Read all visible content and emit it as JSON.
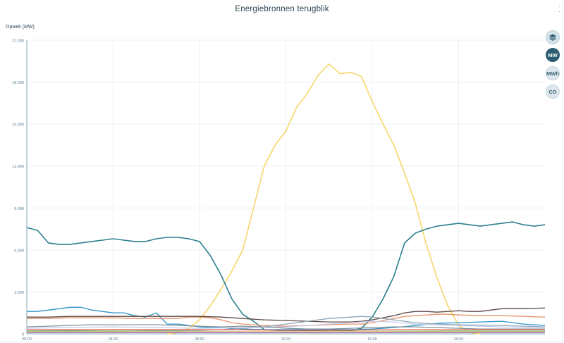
{
  "title": "Energiebronnen terugblik",
  "controls": {
    "layers_icon": "layers-icon",
    "mw_label": "MW",
    "mwh_label": "MWh",
    "co_label": "CO"
  },
  "colors": {
    "axis": "#7ea5b8",
    "tick_text": "#5a7f92",
    "grid": "#edf1f3"
  },
  "chart_data": {
    "type": "line",
    "ylabel": "Opwek (MW)",
    "ylim": [
      0,
      21000
    ],
    "xlim": [
      0,
      24
    ],
    "yticks": [
      0,
      3000,
      6000,
      9000,
      12000,
      15000,
      18000,
      21000
    ],
    "ytick_labels": [
      "0",
      "3.000",
      "6.000",
      "9.000",
      "12.000",
      "15.000",
      "18.000",
      "21.000"
    ],
    "xticks": [
      0,
      4,
      8,
      12,
      16,
      20
    ],
    "xtick_labels": [
      "00:00",
      "04:00",
      "08:00",
      "12:00",
      "16:00",
      "20:00"
    ],
    "grid": true,
    "series": [
      {
        "color": "#f7d66b",
        "x": [
          6.5,
          7,
          7.5,
          8,
          8.5,
          9,
          9.5,
          10,
          10.5,
          11,
          11.5,
          12,
          12.5,
          13,
          13.5,
          14,
          14.5,
          15,
          15.5,
          16,
          16.5,
          17,
          17.5,
          18,
          18.5,
          19,
          19.5,
          20,
          20.5,
          21
        ],
        "y": [
          0,
          100,
          400,
          1000,
          2000,
          3200,
          4500,
          6000,
          9000,
          12000,
          13500,
          14500,
          16200,
          17200,
          18500,
          19300,
          18600,
          18700,
          18400,
          16600,
          15000,
          13500,
          11500,
          9300,
          6400,
          4000,
          2000,
          600,
          100,
          0
        ]
      },
      {
        "color": "#2b7f8e",
        "x": [
          0,
          0.5,
          1,
          1.5,
          2,
          2.5,
          3,
          3.5,
          4,
          4.5,
          5,
          5.5,
          6,
          6.5,
          7,
          7.5,
          8,
          8.5,
          9,
          9.5,
          10,
          10.5,
          11,
          11.5,
          12,
          13,
          14,
          15,
          15.5,
          16,
          16.5,
          17,
          17.5,
          18,
          18.5,
          19,
          19.5,
          20,
          20.5,
          21,
          21.5,
          22,
          22.5,
          23,
          23.5,
          24
        ],
        "y": [
          7600,
          7400,
          6500,
          6400,
          6400,
          6500,
          6600,
          6700,
          6800,
          6700,
          6600,
          6600,
          6800,
          6900,
          6900,
          6800,
          6600,
          5600,
          4200,
          2500,
          1400,
          900,
          300,
          250,
          200,
          200,
          250,
          200,
          400,
          1200,
          2500,
          4100,
          6500,
          7200,
          7500,
          7700,
          7800,
          7900,
          7800,
          7700,
          7800,
          7900,
          8000,
          7800,
          7700,
          7800
        ]
      },
      {
        "color": "#2f95c7",
        "x": [
          0,
          0.5,
          1,
          1.5,
          2,
          2.5,
          3,
          3.5,
          4,
          4.5,
          5,
          5.5,
          6,
          6.5,
          7,
          7.5,
          8,
          8.5,
          9,
          9.5,
          10,
          11,
          12,
          13,
          14,
          15,
          16,
          17,
          18,
          19,
          20,
          21,
          22,
          23,
          24
        ],
        "y": [
          1600,
          1600,
          1700,
          1800,
          1900,
          1900,
          1700,
          1600,
          1500,
          1500,
          1300,
          1200,
          1500,
          700,
          700,
          600,
          500,
          450,
          450,
          400,
          350,
          300,
          300,
          300,
          300,
          300,
          350,
          450,
          600,
          750,
          800,
          850,
          900,
          700,
          600
        ]
      },
      {
        "color": "#e8926a",
        "x": [
          0,
          1,
          2,
          3,
          4,
          5,
          6,
          7,
          7.5,
          8,
          8.5,
          9,
          9.5,
          10,
          10.5,
          11,
          12,
          13,
          14,
          15,
          15.5,
          16,
          16.5,
          17,
          17.5,
          18,
          18.5,
          19,
          19.5,
          20,
          21,
          22,
          23,
          24
        ],
        "y": [
          1100,
          1100,
          1150,
          1150,
          1150,
          1100,
          1100,
          1100,
          1200,
          1200,
          1150,
          1000,
          800,
          700,
          650,
          600,
          550,
          600,
          650,
          700,
          700,
          800,
          950,
          1100,
          1250,
          1300,
          1350,
          1400,
          1400,
          1350,
          1300,
          1300,
          1250,
          1200
        ]
      },
      {
        "color": "#5c4a44",
        "x": [
          0,
          1,
          2,
          3,
          4,
          5,
          6,
          7,
          8,
          9,
          10,
          11,
          12,
          13,
          14,
          15,
          15.5,
          16,
          16.5,
          17,
          17.5,
          18,
          18.5,
          19,
          19.5,
          20,
          20.5,
          21,
          21.5,
          22,
          22.5,
          23,
          24
        ],
        "y": [
          1200,
          1200,
          1250,
          1250,
          1250,
          1250,
          1250,
          1250,
          1250,
          1200,
          1100,
          1000,
          950,
          900,
          850,
          850,
          900,
          1000,
          1150,
          1300,
          1500,
          1600,
          1600,
          1550,
          1600,
          1650,
          1600,
          1600,
          1700,
          1800,
          1800,
          1800,
          1850
        ]
      },
      {
        "color": "#8da8ba",
        "x": [
          0,
          2,
          4,
          6,
          8,
          9,
          10,
          11,
          12,
          13,
          14,
          15,
          15.5,
          16,
          17,
          18,
          19,
          20,
          22,
          24
        ],
        "y": [
          200,
          250,
          300,
          250,
          250,
          300,
          400,
          500,
          700,
          900,
          1100,
          1200,
          1250,
          1200,
          1000,
          800,
          700,
          650,
          600,
          500
        ]
      },
      {
        "color": "#c7c9ea",
        "x": [
          0,
          2,
          4,
          6,
          8,
          10,
          12,
          14,
          15,
          16,
          17,
          18,
          20,
          22,
          24
        ],
        "y": [
          400,
          450,
          500,
          450,
          400,
          450,
          500,
          700,
          800,
          900,
          850,
          700,
          600,
          500,
          450
        ]
      },
      {
        "color": "#7f9299",
        "x": [
          0,
          1,
          2,
          3,
          4,
          5,
          6,
          7,
          8,
          9,
          10,
          11,
          12,
          13,
          14,
          15,
          16,
          17,
          18,
          19,
          20,
          21,
          22,
          23,
          24
        ],
        "y": [
          500,
          550,
          600,
          650,
          650,
          650,
          650,
          600,
          550,
          500,
          550,
          500,
          400,
          350,
          350,
          400,
          450,
          500,
          500,
          450,
          400,
          350,
          350,
          350,
          350
        ]
      },
      {
        "color": "#e76a5a",
        "x": [
          0,
          4,
          8,
          10,
          12,
          14,
          16,
          18,
          20,
          22,
          24
        ],
        "y": [
          300,
          300,
          300,
          280,
          250,
          250,
          280,
          300,
          300,
          300,
          300
        ]
      },
      {
        "color": "#5cb85c",
        "x": [
          0,
          4,
          8,
          12,
          16,
          20,
          24
        ],
        "y": [
          200,
          200,
          180,
          160,
          180,
          200,
          200
        ]
      },
      {
        "color": "#a05fb5",
        "x": [
          0,
          4,
          8,
          12,
          16,
          20,
          24
        ],
        "y": [
          80,
          80,
          80,
          80,
          80,
          80,
          80
        ]
      },
      {
        "color": "#f0c88a",
        "x": [
          0,
          4,
          8,
          12,
          16,
          20,
          24
        ],
        "y": [
          150,
          150,
          160,
          170,
          160,
          150,
          150
        ]
      }
    ]
  }
}
